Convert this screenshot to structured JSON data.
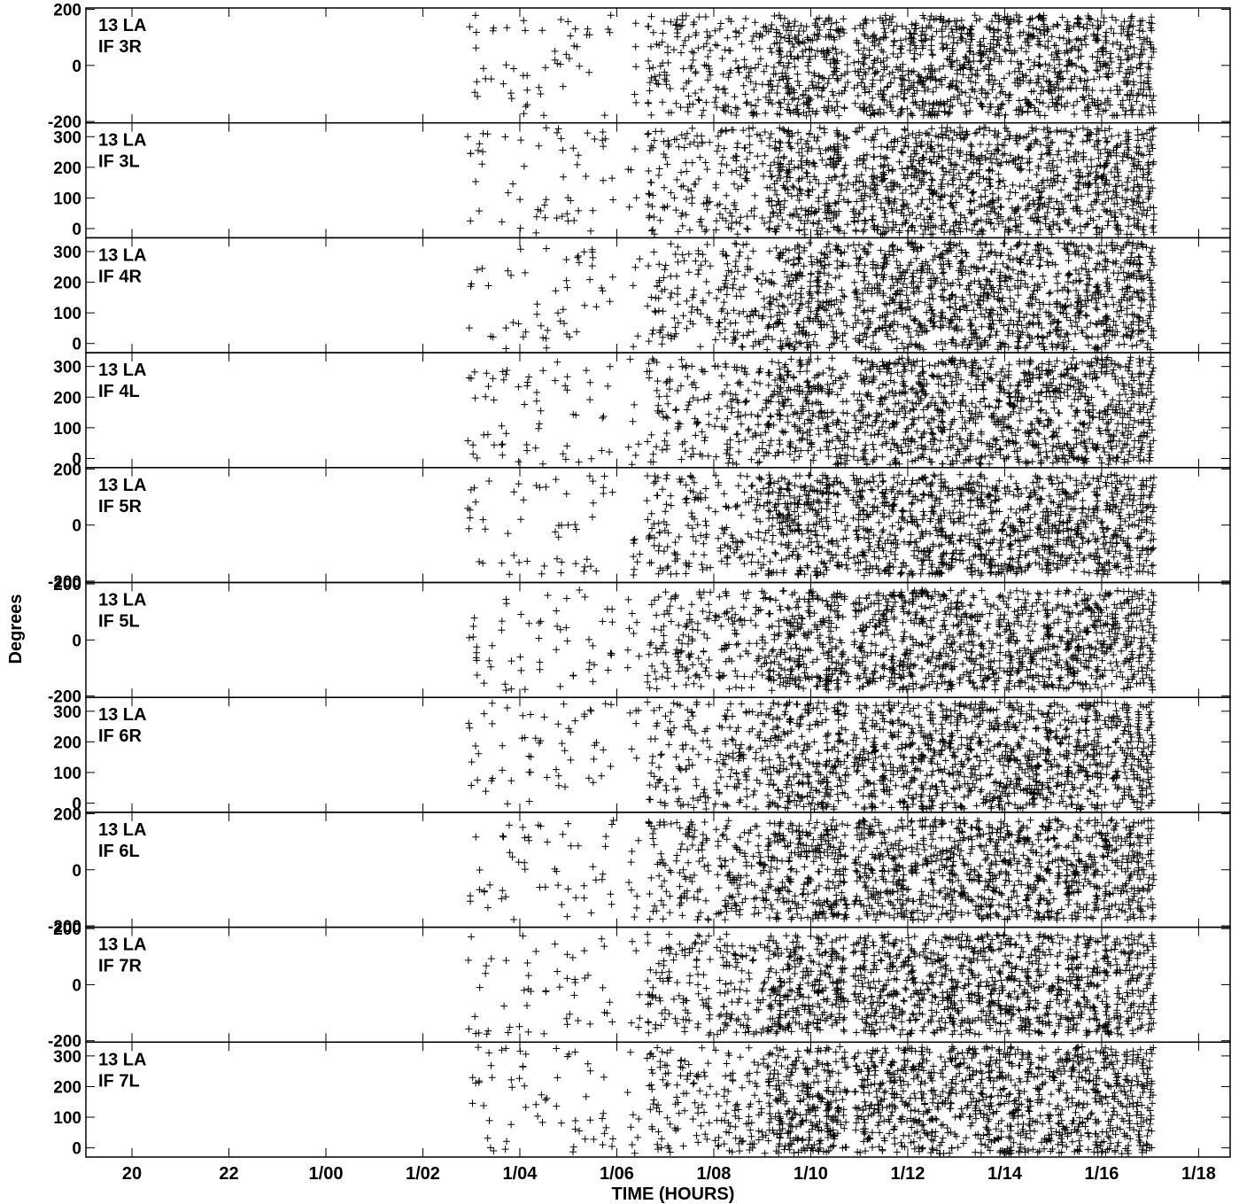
{
  "chart_data": {
    "type": "scatter",
    "title": "",
    "marker": "+",
    "marker_color": "#000000",
    "background": "#ffffff",
    "xlabel": "TIME (HOURS)",
    "ylabel": "Degrees",
    "x_unit": "hours",
    "x_range": [
      19.05,
      42.65
    ],
    "x_ticks": [
      {
        "value": 20,
        "label": "20"
      },
      {
        "value": 22,
        "label": "22"
      },
      {
        "value": 24,
        "label": "1/00"
      },
      {
        "value": 26,
        "label": "1/02"
      },
      {
        "value": 28,
        "label": "1/04"
      },
      {
        "value": 30,
        "label": "1/06"
      },
      {
        "value": 32,
        "label": "1/08"
      },
      {
        "value": 34,
        "label": "1/10"
      },
      {
        "value": 36,
        "label": "1/12"
      },
      {
        "value": 38,
        "label": "1/14"
      },
      {
        "value": 40,
        "label": "1/16"
      },
      {
        "value": 42,
        "label": "1/18"
      }
    ],
    "data_time_range": [
      27.0,
      41.05
    ],
    "panels": [
      {
        "antenna": "13 LA",
        "if": "IF 3R",
        "ylim": [
          -205,
          205
        ],
        "yticks": [
          -200,
          0,
          200
        ],
        "phase_range": [
          -180,
          180
        ]
      },
      {
        "antenna": "13 LA",
        "if": "IF 3L",
        "ylim": [
          -30,
          345
        ],
        "yticks": [
          0,
          100,
          200,
          300
        ],
        "phase_range": [
          -20,
          330
        ]
      },
      {
        "antenna": "13 LA",
        "if": "IF 4R",
        "ylim": [
          -30,
          345
        ],
        "yticks": [
          0,
          100,
          200,
          300
        ],
        "phase_range": [
          -20,
          330
        ]
      },
      {
        "antenna": "13 LA",
        "if": "IF 4L",
        "ylim": [
          -30,
          345
        ],
        "yticks": [
          0,
          100,
          200,
          300
        ],
        "phase_range": [
          -20,
          330
        ]
      },
      {
        "antenna": "13 LA",
        "if": "IF 5R",
        "ylim": [
          -205,
          205
        ],
        "yticks": [
          -200,
          0,
          200
        ],
        "phase_range": [
          -180,
          180
        ]
      },
      {
        "antenna": "13 LA",
        "if": "IF 5L",
        "ylim": [
          -205,
          205
        ],
        "yticks": [
          -200,
          0,
          200
        ],
        "phase_range": [
          -180,
          180
        ]
      },
      {
        "antenna": "13 LA",
        "if": "IF 6R",
        "ylim": [
          -30,
          345
        ],
        "yticks": [
          0,
          100,
          200,
          300
        ],
        "phase_range": [
          -20,
          330
        ]
      },
      {
        "antenna": "13 LA",
        "if": "IF 6L",
        "ylim": [
          -205,
          205
        ],
        "yticks": [
          -200,
          0,
          200
        ],
        "phase_range": [
          -180,
          180
        ]
      },
      {
        "antenna": "13 LA",
        "if": "IF 7R",
        "ylim": [
          -205,
          205
        ],
        "yticks": [
          -200,
          0,
          200
        ],
        "phase_range": [
          -180,
          180
        ]
      },
      {
        "antenna": "13 LA",
        "if": "IF 7L",
        "ylim": [
          -30,
          345
        ],
        "yticks": [
          0,
          100,
          200,
          300
        ],
        "phase_range": [
          -20,
          330
        ]
      }
    ],
    "scan_times": [
      27.05,
      27.35,
      27.75,
      28.1,
      28.45,
      28.85,
      29.1,
      29.45,
      29.8,
      30.35,
      30.75,
      31.0,
      31.3,
      31.55,
      31.8,
      32.15,
      32.35,
      32.55,
      32.8,
      33.05,
      33.25,
      33.45,
      33.65,
      33.85,
      34.05,
      34.25,
      34.45,
      34.65,
      35.0,
      35.2,
      35.4,
      35.6,
      35.8,
      36.0,
      36.2,
      36.4,
      36.6,
      36.8,
      37.0,
      37.2,
      37.4,
      37.6,
      37.8,
      38.0,
      38.2,
      38.4,
      38.6,
      38.8,
      39.0,
      39.2,
      39.4,
      39.6,
      39.8,
      40.0,
      40.2,
      40.4,
      40.6,
      40.8,
      41.0
    ]
  }
}
